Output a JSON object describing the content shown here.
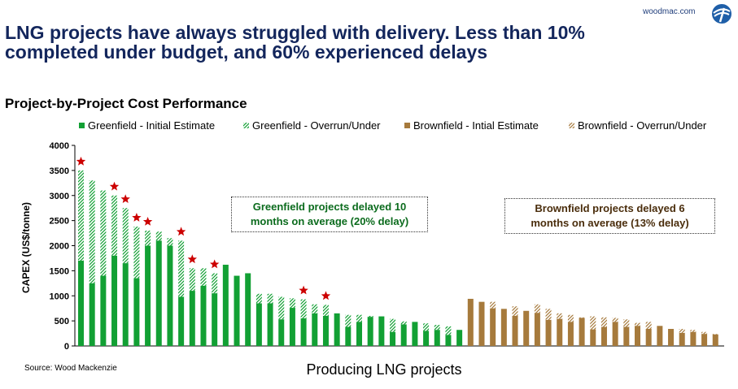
{
  "header": {
    "headline_line1": "LNG projects have always struggled with delivery. Less than 10%",
    "headline_line2": "completed under budget, and 60% experienced delays",
    "logo_text": "woodmac.com"
  },
  "subtitle": "Project-by-Project Cost Performance",
  "source": "Source: Wood Mackenzie",
  "annotations": {
    "greenfield_line1": "Greenfield projects delayed 10",
    "greenfield_line2": "months on average (20% delay)",
    "brownfield_line1": "Brownfield projects delayed 6",
    "brownfield_line2": "months on average (13% delay)"
  },
  "colors": {
    "green": "#12a034",
    "brown": "#a67a3c",
    "star": "#cc0000",
    "headline": "#13265c"
  },
  "chart_data": {
    "type": "bar",
    "xlabel": "Producing LNG projects",
    "ylabel": "CAPEX  (US$/tonne)",
    "ylim": [
      0,
      4000
    ],
    "yticks": [
      0,
      500,
      1000,
      1500,
      2000,
      2500,
      3000,
      3500,
      4000
    ],
    "grid": false,
    "legend_position": "top",
    "series": [
      {
        "name": "Greenfield - Initial Estimate",
        "style": "solid",
        "group": "greenfield"
      },
      {
        "name": "Greenfield - Overrun/Under",
        "style": "hatched",
        "group": "greenfield"
      },
      {
        "name": "Brownfield - Intial Estimate",
        "style": "solid",
        "group": "brownfield"
      },
      {
        "name": "Brownfield - Overrun/Under",
        "style": "hatched",
        "group": "brownfield"
      }
    ],
    "greenfield_projects": [
      {
        "initial": 1700,
        "total": 3500,
        "delayed": true
      },
      {
        "initial": 1250,
        "total": 3300,
        "delayed": false
      },
      {
        "initial": 1400,
        "total": 3100,
        "delayed": false
      },
      {
        "initial": 1800,
        "total": 3000,
        "delayed": true
      },
      {
        "initial": 1650,
        "total": 2750,
        "delayed": true
      },
      {
        "initial": 1350,
        "total": 2380,
        "delayed": true
      },
      {
        "initial": 2000,
        "total": 2300,
        "delayed": true
      },
      {
        "initial": 2100,
        "total": 2280,
        "delayed": false
      },
      {
        "initial": 2000,
        "total": 2150,
        "delayed": false
      },
      {
        "initial": 980,
        "total": 2100,
        "delayed": true
      },
      {
        "initial": 1100,
        "total": 1550,
        "delayed": true
      },
      {
        "initial": 1200,
        "total": 1550,
        "delayed": false
      },
      {
        "initial": 1050,
        "total": 1450,
        "delayed": true
      },
      {
        "initial": 1620,
        "total": 1620,
        "delayed": false
      },
      {
        "initial": 1400,
        "total": 1400,
        "delayed": false
      },
      {
        "initial": 1450,
        "total": 1450,
        "delayed": false
      },
      {
        "initial": 850,
        "total": 1040,
        "delayed": false
      },
      {
        "initial": 850,
        "total": 1040,
        "delayed": false
      },
      {
        "initial": 530,
        "total": 980,
        "delayed": false
      },
      {
        "initial": 760,
        "total": 950,
        "delayed": false
      },
      {
        "initial": 550,
        "total": 930,
        "delayed": true
      },
      {
        "initial": 650,
        "total": 830,
        "delayed": false
      },
      {
        "initial": 600,
        "total": 820,
        "delayed": true
      },
      {
        "initial": 650,
        "total": 650,
        "delayed": false
      },
      {
        "initial": 380,
        "total": 620,
        "delayed": false
      },
      {
        "initial": 480,
        "total": 620,
        "delayed": false
      },
      {
        "initial": 580,
        "total": 600,
        "delayed": false
      },
      {
        "initial": 590,
        "total": 590,
        "delayed": false
      },
      {
        "initial": 280,
        "total": 540,
        "delayed": false
      },
      {
        "initial": 430,
        "total": 490,
        "delayed": false
      },
      {
        "initial": 480,
        "total": 480,
        "delayed": false
      },
      {
        "initial": 300,
        "total": 450,
        "delayed": false
      },
      {
        "initial": 320,
        "total": 420,
        "delayed": false
      },
      {
        "initial": 220,
        "total": 390,
        "delayed": false
      },
      {
        "initial": 320,
        "total": 320,
        "delayed": false
      }
    ],
    "brownfield_projects": [
      {
        "initial": 940,
        "total": 940
      },
      {
        "initial": 880,
        "total": 880
      },
      {
        "initial": 750,
        "total": 880
      },
      {
        "initial": 740,
        "total": 740
      },
      {
        "initial": 600,
        "total": 790
      },
      {
        "initial": 700,
        "total": 700
      },
      {
        "initial": 660,
        "total": 830
      },
      {
        "initial": 520,
        "total": 740
      },
      {
        "initial": 540,
        "total": 650
      },
      {
        "initial": 480,
        "total": 620
      },
      {
        "initial": 560,
        "total": 570
      },
      {
        "initial": 330,
        "total": 590
      },
      {
        "initial": 380,
        "total": 570
      },
      {
        "initial": 480,
        "total": 560
      },
      {
        "initial": 380,
        "total": 530
      },
      {
        "initial": 400,
        "total": 460
      },
      {
        "initial": 340,
        "total": 480
      },
      {
        "initial": 400,
        "total": 400
      },
      {
        "initial": 340,
        "total": 340
      },
      {
        "initial": 260,
        "total": 340
      },
      {
        "initial": 280,
        "total": 320
      },
      {
        "initial": 240,
        "total": 280
      },
      {
        "initial": 230,
        "total": 240
      }
    ]
  }
}
